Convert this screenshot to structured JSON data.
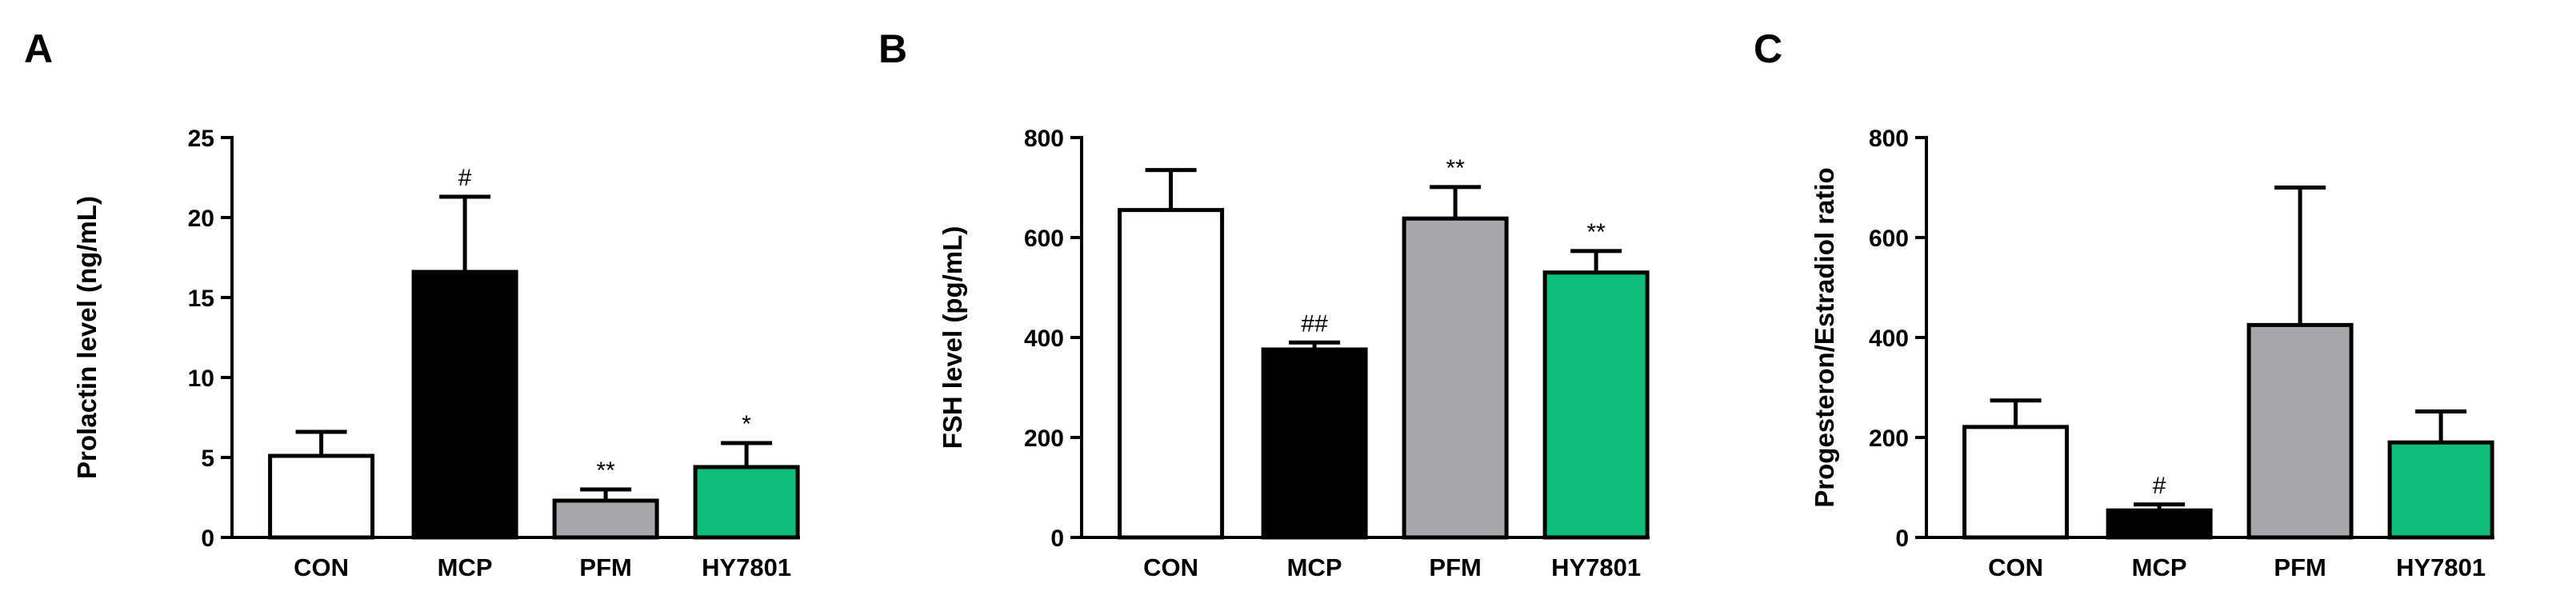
{
  "figure": {
    "panels": [
      "A",
      "B",
      "C"
    ]
  },
  "chart_data": [
    {
      "type": "bar",
      "panel": "A",
      "ylabel": "Prolactin level (ng/mL)",
      "xlabel": "",
      "categories": [
        "CON",
        "MCP",
        "PFM",
        "HY7801"
      ],
      "values": [
        5.1,
        16.6,
        2.3,
        4.4
      ],
      "errors": [
        1.5,
        4.7,
        0.7,
        1.5
      ],
      "annotations": [
        "",
        "#",
        "**",
        "*"
      ],
      "colors": [
        "#ffffff",
        "#000000",
        "#a6a6aa",
        "#0dbd79"
      ],
      "ylim": [
        0,
        25
      ],
      "yticks": [
        0,
        5,
        10,
        15,
        20,
        25
      ]
    },
    {
      "type": "bar",
      "panel": "B",
      "ylabel": "FSH level (pg/mL)",
      "xlabel": "",
      "categories": [
        "CON",
        "MCP",
        "PFM",
        "HY7801"
      ],
      "values": [
        655,
        376,
        638,
        530
      ],
      "errors": [
        80,
        14,
        63,
        43
      ],
      "annotations": [
        "",
        "##",
        "**",
        "**"
      ],
      "colors": [
        "#ffffff",
        "#000000",
        "#a6a6aa",
        "#0dbd79"
      ],
      "ylim": [
        0,
        800
      ],
      "yticks": [
        0,
        200,
        400,
        600,
        800
      ]
    },
    {
      "type": "bar",
      "panel": "C",
      "ylabel": "Progesteron/Estradiol ratio",
      "xlabel": "",
      "categories": [
        "CON",
        "MCP",
        "PFM",
        "HY7801"
      ],
      "values": [
        221,
        54,
        425,
        190
      ],
      "errors": [
        53,
        12,
        275,
        62
      ],
      "annotations": [
        "",
        "#",
        "",
        ""
      ],
      "colors": [
        "#ffffff",
        "#000000",
        "#a6a6aa",
        "#0dbd79"
      ],
      "ylim": [
        0,
        800
      ],
      "yticks": [
        0,
        200,
        400,
        600,
        800
      ]
    }
  ]
}
